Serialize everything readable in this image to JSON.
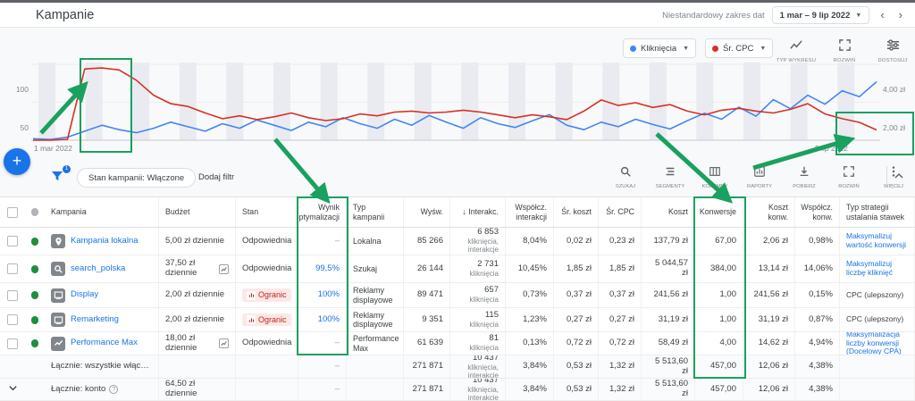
{
  "colors": {
    "link": "#1a73e8",
    "annotation_green": "#1aa05f",
    "status_green": "#1e8e3e",
    "limited_red": "#c5221f",
    "limited_bg": "#fce8e6",
    "series_clicks_blue": "#4285f4",
    "series_cpc_red": "#d93025"
  },
  "header": {
    "title": "Kampanie",
    "date_label": "Niestandardowy zakres dat",
    "date_value": "1 mar – 9 lip 2022"
  },
  "chart": {
    "metrics": [
      {
        "label": "Kliknięcia",
        "color": "#4285f4"
      },
      {
        "label": "Śr. CPC",
        "color": "#d93025"
      }
    ],
    "tools": [
      {
        "label": "TYP WYKRESU",
        "icon": "line-chart"
      },
      {
        "label": "ROZWIŃ",
        "icon": "expand"
      },
      {
        "label": "DOSTOSUJ",
        "icon": "tune"
      }
    ],
    "left_ticks": [
      "100",
      "50",
      "0"
    ],
    "right_ticks": [
      "4,00 zł",
      "2,00 zł",
      "0,00 zł"
    ],
    "x_start": "1 mar 2022",
    "x_end": "9 lip 2022"
  },
  "chart_data": {
    "type": "line",
    "x_range": [
      "1 mar 2022",
      "9 lip 2022"
    ],
    "left_axis": {
      "label": "Kliknięcia",
      "ticks": [
        0,
        50,
        100
      ],
      "max": 100
    },
    "right_axis": {
      "label": "Śr. CPC (zł)",
      "ticks": [
        0,
        2,
        4
      ],
      "max": 4
    },
    "grid": "weekend-bands",
    "legend_position": "top-right",
    "series": [
      {
        "name": "Kliknięcia",
        "axis": "left",
        "color": "#4285f4",
        "values": [
          2,
          1,
          4,
          12,
          20,
          14,
          10,
          16,
          24,
          18,
          12,
          22,
          16,
          27,
          20,
          13,
          24,
          18,
          30,
          22,
          16,
          28,
          20,
          33,
          24,
          16,
          30,
          22,
          17,
          26,
          34,
          20,
          14,
          24,
          18,
          28,
          21,
          15,
          26,
          36,
          28,
          44,
          32,
          54,
          42,
          60,
          48,
          66,
          58,
          78
        ]
      },
      {
        "name": "Śr. CPC",
        "axis": "right",
        "color": "#d93025",
        "values": [
          0,
          0,
          0.05,
          3.8,
          3.85,
          3.75,
          3.2,
          2.4,
          1.95,
          1.8,
          1.45,
          1.15,
          1.3,
          1.1,
          1.25,
          1.45,
          1.2,
          1.05,
          1.15,
          1.4,
          1.3,
          1.5,
          1.55,
          1.45,
          1.5,
          1.6,
          1.5,
          1.35,
          1.2,
          1.35,
          1.25,
          1.1,
          1.55,
          2.15,
          1.85,
          2.0,
          1.75,
          1.9,
          1.55,
          1.35,
          1.6,
          1.7,
          1.55,
          1.45,
          1.65,
          1.95,
          1.4,
          1.15,
          0.95,
          0.55
        ]
      }
    ]
  },
  "toolbar": {
    "filter_badge": "1",
    "chip": "Stan kampanii: Włączone",
    "add_filter": "Dodaj filtr",
    "icons": [
      {
        "label": "SZUKAJ",
        "icon": "search"
      },
      {
        "label": "SEGMENTY",
        "icon": "segments"
      },
      {
        "label": "KOLUMNY",
        "icon": "columns"
      },
      {
        "label": "RAPORTY",
        "icon": "reports"
      },
      {
        "label": "POBIERZ",
        "icon": "download"
      },
      {
        "label": "ROZWIŃ",
        "icon": "expand"
      },
      {
        "label": "WIĘCEJ",
        "icon": "more"
      }
    ]
  },
  "table": {
    "headers": [
      "",
      "",
      "Kampania",
      "Budżet",
      "Stan",
      "Wynik optymalizacji",
      "Typ kampanii",
      "Wyśw.",
      "↓ Interakc.",
      "Współcz. interakcji",
      "Śr. koszt",
      "Śr. CPC",
      "Koszt",
      "Konwersje",
      "Koszt konw.",
      "Współcz. konw.",
      "Typ strategii ustalania stawek"
    ],
    "rows": [
      {
        "icon": "location",
        "name": "Kampania lokalna",
        "budget": "5,00 zł dziennie",
        "budget_icon": false,
        "stan": "Odpowiednia",
        "stan_limited": false,
        "wynik": "–",
        "wynik_link": false,
        "typ": "Lokalna",
        "wysw": "85 266",
        "inter": "6 853",
        "inter_sub": "kliknięcia, interakcje",
        "wsp_int": "8,04%",
        "sr_koszt": "0,02 zł",
        "sr_cpc": "0,23 zł",
        "koszt": "137,79 zł",
        "konw": "67,00",
        "koszt_konw": "2,06 zł",
        "wsp_konw": "0,98%",
        "strategia": "Maksymalizuj wartość konwersji",
        "strategia_link": true
      },
      {
        "icon": "search",
        "name": "search_polska",
        "budget": "37,50 zł dziennie",
        "budget_icon": true,
        "stan": "Odpowiednia",
        "stan_limited": false,
        "wynik": "99,5%",
        "wynik_link": true,
        "typ": "Szukaj",
        "wysw": "26 144",
        "inter": "2 731",
        "inter_sub": "kliknięcia",
        "wsp_int": "10,45%",
        "sr_koszt": "1,85 zł",
        "sr_cpc": "1,85 zł",
        "koszt": "5 044,57 zł",
        "konw": "384,00",
        "koszt_konw": "13,14 zł",
        "wsp_konw": "14,06%",
        "strategia": "Maksymalizuj liczbę kliknięć",
        "strategia_link": true
      },
      {
        "icon": "display",
        "name": "Display",
        "budget": "2,00 zł dziennie",
        "budget_icon": false,
        "stan": "Ogranic",
        "stan_limited": true,
        "wynik": "100%",
        "wynik_link": true,
        "typ": "Reklamy displayowe",
        "wysw": "89 471",
        "inter": "657",
        "inter_sub": "kliknięcia",
        "wsp_int": "0,73%",
        "sr_koszt": "0,37 zł",
        "sr_cpc": "0,37 zł",
        "koszt": "241,56 zł",
        "konw": "1,00",
        "koszt_konw": "241,56 zł",
        "wsp_konw": "0,15%",
        "strategia": "CPC (ulepszony)",
        "strategia_link": false
      },
      {
        "icon": "display",
        "name": "Remarketing",
        "budget": "2,00 zł dziennie",
        "budget_icon": false,
        "stan": "Ogranic",
        "stan_limited": true,
        "wynik": "100%",
        "wynik_link": true,
        "typ": "Reklamy displayowe",
        "wysw": "9 351",
        "inter": "115",
        "inter_sub": "kliknięcia",
        "wsp_int": "1,23%",
        "sr_koszt": "0,27 zł",
        "sr_cpc": "0,27 zł",
        "koszt": "31,19 zł",
        "konw": "1,00",
        "koszt_konw": "31,19 zł",
        "wsp_konw": "0,87%",
        "strategia": "CPC (ulepszony)",
        "strategia_link": false
      },
      {
        "icon": "chart",
        "name": "Performance Max",
        "budget": "18,00 zł dziennie",
        "budget_icon": true,
        "stan": "Odpowiednia",
        "stan_limited": false,
        "wynik": "–",
        "wynik_link": false,
        "typ": "Performance Max",
        "wysw": "61 639",
        "inter": "81",
        "inter_sub": "kliknięcia",
        "wsp_int": "0,13%",
        "sr_koszt": "0,72 zł",
        "sr_cpc": "0,72 zł",
        "koszt": "58,49 zł",
        "konw": "4,00",
        "koszt_konw": "14,62 zł",
        "wsp_konw": "4,94%",
        "strategia": "Maksymalizacja liczby konwersji (Docelowy CPA)",
        "strategia_link": true
      }
    ],
    "totals": [
      {
        "label": "Łącznie: wszystkie włąc…",
        "help": false,
        "chevron": false,
        "budget": "",
        "wynik": "–",
        "wysw": "271 871",
        "inter": "10 437",
        "inter_sub": "kliknięcia, interakcje",
        "wsp_int": "3,84%",
        "sr_koszt": "0,53 zł",
        "sr_cpc": "1,32 zł",
        "koszt": "5 513,60 zł",
        "konw": "457,00",
        "koszt_konw": "12,06 zł",
        "wsp_konw": "4,38%",
        "strategia": ""
      },
      {
        "label": "Łącznie: konto",
        "help": true,
        "chevron": true,
        "budget": "64,50 zł dziennie",
        "wynik": "–",
        "wysw": "271 871",
        "inter": "10 437",
        "inter_sub": "kliknięcia, interakcje",
        "wsp_int": "3,84%",
        "sr_koszt": "0,53 zł",
        "sr_cpc": "1,32 zł",
        "koszt": "5 513,60 zł",
        "konw": "457,00",
        "koszt_konw": "12,06 zł",
        "wsp_konw": "4,38%",
        "strategia": ""
      }
    ]
  }
}
